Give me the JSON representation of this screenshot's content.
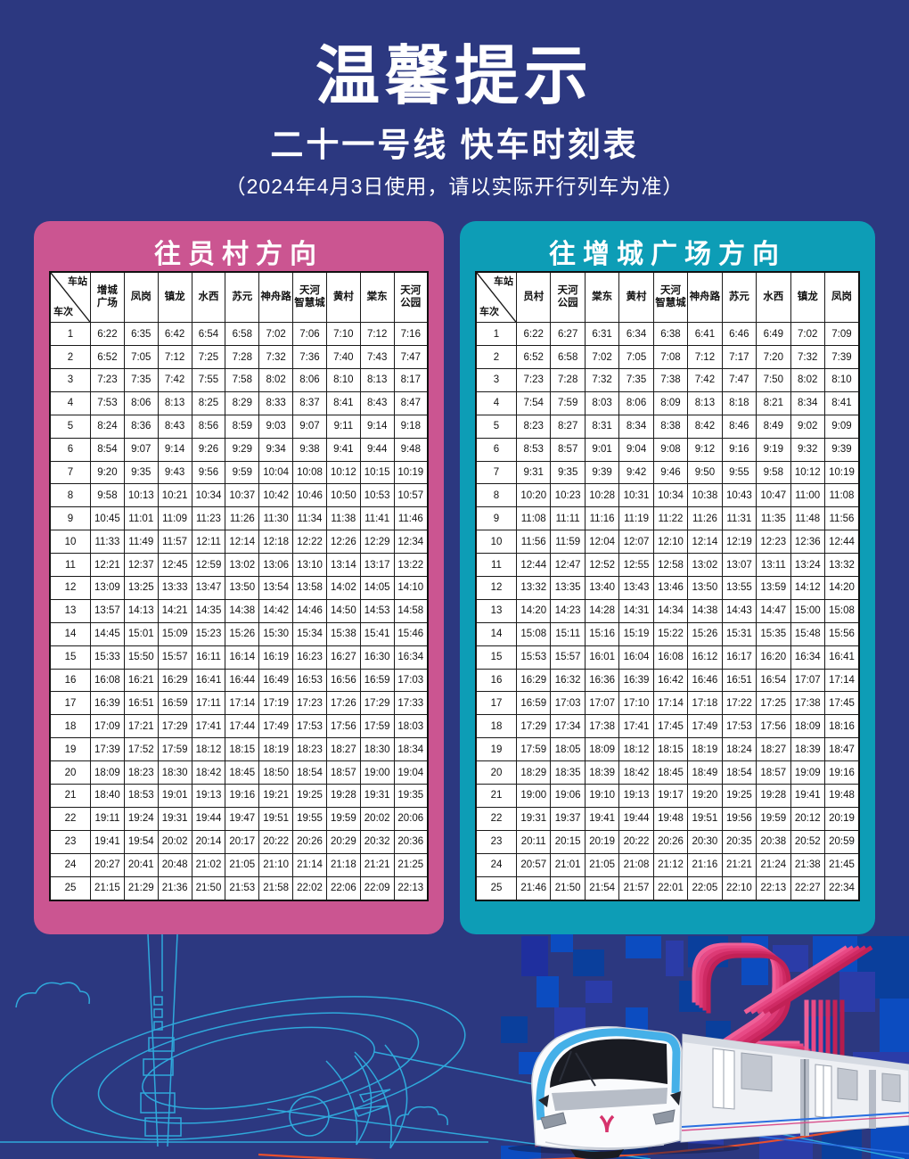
{
  "header": {
    "title": "温馨提示",
    "subtitle": "二十一号线 快车时刻表",
    "note": "（2024年4月3日使用，请以实际开行列车为准）"
  },
  "corner": {
    "station": "车站",
    "train": "车次"
  },
  "colors": {
    "background": "#2c3880",
    "panel_pink": "#cb5591",
    "panel_teal": "#0d9db6",
    "table_border": "#1a1a1a",
    "accent_pink": "#e0447f",
    "line_art_blue": "#2fa9db",
    "orange_route_line": "#e8502e"
  },
  "decoration": {
    "numeral_graphic": "21",
    "icons": [
      "metro-train-icon",
      "canton-tower-line-art-icon",
      "cloud-line-art-icon",
      "pixel-mosaic",
      "crescent-line-art-icon"
    ]
  },
  "tables": [
    {
      "direction": "往员村方向",
      "stations": [
        "增城\n广场",
        "凤岗",
        "镇龙",
        "水西",
        "苏元",
        "神舟路",
        "天河\n智慧城",
        "黄村",
        "棠东",
        "天河\n公园"
      ],
      "rows": [
        {
          "no": "1",
          "times": [
            "6:22",
            "6:35",
            "6:42",
            "6:54",
            "6:58",
            "7:02",
            "7:06",
            "7:10",
            "7:12",
            "7:16"
          ]
        },
        {
          "no": "2",
          "times": [
            "6:52",
            "7:05",
            "7:12",
            "7:25",
            "7:28",
            "7:32",
            "7:36",
            "7:40",
            "7:43",
            "7:47"
          ]
        },
        {
          "no": "3",
          "times": [
            "7:23",
            "7:35",
            "7:42",
            "7:55",
            "7:58",
            "8:02",
            "8:06",
            "8:10",
            "8:13",
            "8:17"
          ]
        },
        {
          "no": "4",
          "times": [
            "7:53",
            "8:06",
            "8:13",
            "8:25",
            "8:29",
            "8:33",
            "8:37",
            "8:41",
            "8:43",
            "8:47"
          ]
        },
        {
          "no": "5",
          "times": [
            "8:24",
            "8:36",
            "8:43",
            "8:56",
            "8:59",
            "9:03",
            "9:07",
            "9:11",
            "9:14",
            "9:18"
          ]
        },
        {
          "no": "6",
          "times": [
            "8:54",
            "9:07",
            "9:14",
            "9:26",
            "9:29",
            "9:34",
            "9:38",
            "9:41",
            "9:44",
            "9:48"
          ]
        },
        {
          "no": "7",
          "times": [
            "9:20",
            "9:35",
            "9:43",
            "9:56",
            "9:59",
            "10:04",
            "10:08",
            "10:12",
            "10:15",
            "10:19"
          ]
        },
        {
          "no": "8",
          "times": [
            "9:58",
            "10:13",
            "10:21",
            "10:34",
            "10:37",
            "10:42",
            "10:46",
            "10:50",
            "10:53",
            "10:57"
          ]
        },
        {
          "no": "9",
          "times": [
            "10:45",
            "11:01",
            "11:09",
            "11:23",
            "11:26",
            "11:30",
            "11:34",
            "11:38",
            "11:41",
            "11:46"
          ]
        },
        {
          "no": "10",
          "times": [
            "11:33",
            "11:49",
            "11:57",
            "12:11",
            "12:14",
            "12:18",
            "12:22",
            "12:26",
            "12:29",
            "12:34"
          ]
        },
        {
          "no": "11",
          "times": [
            "12:21",
            "12:37",
            "12:45",
            "12:59",
            "13:02",
            "13:06",
            "13:10",
            "13:14",
            "13:17",
            "13:22"
          ]
        },
        {
          "no": "12",
          "times": [
            "13:09",
            "13:25",
            "13:33",
            "13:47",
            "13:50",
            "13:54",
            "13:58",
            "14:02",
            "14:05",
            "14:10"
          ]
        },
        {
          "no": "13",
          "times": [
            "13:57",
            "14:13",
            "14:21",
            "14:35",
            "14:38",
            "14:42",
            "14:46",
            "14:50",
            "14:53",
            "14:58"
          ]
        },
        {
          "no": "14",
          "times": [
            "14:45",
            "15:01",
            "15:09",
            "15:23",
            "15:26",
            "15:30",
            "15:34",
            "15:38",
            "15:41",
            "15:46"
          ]
        },
        {
          "no": "15",
          "times": [
            "15:33",
            "15:50",
            "15:57",
            "16:11",
            "16:14",
            "16:19",
            "16:23",
            "16:27",
            "16:30",
            "16:34"
          ]
        },
        {
          "no": "16",
          "times": [
            "16:08",
            "16:21",
            "16:29",
            "16:41",
            "16:44",
            "16:49",
            "16:53",
            "16:56",
            "16:59",
            "17:03"
          ]
        },
        {
          "no": "17",
          "times": [
            "16:39",
            "16:51",
            "16:59",
            "17:11",
            "17:14",
            "17:19",
            "17:23",
            "17:26",
            "17:29",
            "17:33"
          ]
        },
        {
          "no": "18",
          "times": [
            "17:09",
            "17:21",
            "17:29",
            "17:41",
            "17:44",
            "17:49",
            "17:53",
            "17:56",
            "17:59",
            "18:03"
          ]
        },
        {
          "no": "19",
          "times": [
            "17:39",
            "17:52",
            "17:59",
            "18:12",
            "18:15",
            "18:19",
            "18:23",
            "18:27",
            "18:30",
            "18:34"
          ]
        },
        {
          "no": "20",
          "times": [
            "18:09",
            "18:23",
            "18:30",
            "18:42",
            "18:45",
            "18:50",
            "18:54",
            "18:57",
            "19:00",
            "19:04"
          ]
        },
        {
          "no": "21",
          "times": [
            "18:40",
            "18:53",
            "19:01",
            "19:13",
            "19:16",
            "19:21",
            "19:25",
            "19:28",
            "19:31",
            "19:35"
          ]
        },
        {
          "no": "22",
          "times": [
            "19:11",
            "19:24",
            "19:31",
            "19:44",
            "19:47",
            "19:51",
            "19:55",
            "19:59",
            "20:02",
            "20:06"
          ]
        },
        {
          "no": "23",
          "times": [
            "19:41",
            "19:54",
            "20:02",
            "20:14",
            "20:17",
            "20:22",
            "20:26",
            "20:29",
            "20:32",
            "20:36"
          ]
        },
        {
          "no": "24",
          "times": [
            "20:27",
            "20:41",
            "20:48",
            "21:02",
            "21:05",
            "21:10",
            "21:14",
            "21:18",
            "21:21",
            "21:25"
          ]
        },
        {
          "no": "25",
          "times": [
            "21:15",
            "21:29",
            "21:36",
            "21:50",
            "21:53",
            "21:58",
            "22:02",
            "22:06",
            "22:09",
            "22:13"
          ]
        }
      ]
    },
    {
      "direction": "往增城广场方向",
      "stations": [
        "员村",
        "天河\n公园",
        "棠东",
        "黄村",
        "天河\n智慧城",
        "神舟路",
        "苏元",
        "水西",
        "镇龙",
        "凤岗"
      ],
      "rows": [
        {
          "no": "1",
          "times": [
            "6:22",
            "6:27",
            "6:31",
            "6:34",
            "6:38",
            "6:41",
            "6:46",
            "6:49",
            "7:02",
            "7:09"
          ]
        },
        {
          "no": "2",
          "times": [
            "6:52",
            "6:58",
            "7:02",
            "7:05",
            "7:08",
            "7:12",
            "7:17",
            "7:20",
            "7:32",
            "7:39"
          ]
        },
        {
          "no": "3",
          "times": [
            "7:23",
            "7:28",
            "7:32",
            "7:35",
            "7:38",
            "7:42",
            "7:47",
            "7:50",
            "8:02",
            "8:10"
          ]
        },
        {
          "no": "4",
          "times": [
            "7:54",
            "7:59",
            "8:03",
            "8:06",
            "8:09",
            "8:13",
            "8:18",
            "8:21",
            "8:34",
            "8:41"
          ]
        },
        {
          "no": "5",
          "times": [
            "8:23",
            "8:27",
            "8:31",
            "8:34",
            "8:38",
            "8:42",
            "8:46",
            "8:49",
            "9:02",
            "9:09"
          ]
        },
        {
          "no": "6",
          "times": [
            "8:53",
            "8:57",
            "9:01",
            "9:04",
            "9:08",
            "9:12",
            "9:16",
            "9:19",
            "9:32",
            "9:39"
          ]
        },
        {
          "no": "7",
          "times": [
            "9:31",
            "9:35",
            "9:39",
            "9:42",
            "9:46",
            "9:50",
            "9:55",
            "9:58",
            "10:12",
            "10:19"
          ]
        },
        {
          "no": "8",
          "times": [
            "10:20",
            "10:23",
            "10:28",
            "10:31",
            "10:34",
            "10:38",
            "10:43",
            "10:47",
            "11:00",
            "11:08"
          ]
        },
        {
          "no": "9",
          "times": [
            "11:08",
            "11:11",
            "11:16",
            "11:19",
            "11:22",
            "11:26",
            "11:31",
            "11:35",
            "11:48",
            "11:56"
          ]
        },
        {
          "no": "10",
          "times": [
            "11:56",
            "11:59",
            "12:04",
            "12:07",
            "12:10",
            "12:14",
            "12:19",
            "12:23",
            "12:36",
            "12:44"
          ]
        },
        {
          "no": "11",
          "times": [
            "12:44",
            "12:47",
            "12:52",
            "12:55",
            "12:58",
            "13:02",
            "13:07",
            "13:11",
            "13:24",
            "13:32"
          ]
        },
        {
          "no": "12",
          "times": [
            "13:32",
            "13:35",
            "13:40",
            "13:43",
            "13:46",
            "13:50",
            "13:55",
            "13:59",
            "14:12",
            "14:20"
          ]
        },
        {
          "no": "13",
          "times": [
            "14:20",
            "14:23",
            "14:28",
            "14:31",
            "14:34",
            "14:38",
            "14:43",
            "14:47",
            "15:00",
            "15:08"
          ]
        },
        {
          "no": "14",
          "times": [
            "15:08",
            "15:11",
            "15:16",
            "15:19",
            "15:22",
            "15:26",
            "15:31",
            "15:35",
            "15:48",
            "15:56"
          ]
        },
        {
          "no": "15",
          "times": [
            "15:53",
            "15:57",
            "16:01",
            "16:04",
            "16:08",
            "16:12",
            "16:17",
            "16:20",
            "16:34",
            "16:41"
          ]
        },
        {
          "no": "16",
          "times": [
            "16:29",
            "16:32",
            "16:36",
            "16:39",
            "16:42",
            "16:46",
            "16:51",
            "16:54",
            "17:07",
            "17:14"
          ]
        },
        {
          "no": "17",
          "times": [
            "16:59",
            "17:03",
            "17:07",
            "17:10",
            "17:14",
            "17:18",
            "17:22",
            "17:25",
            "17:38",
            "17:45"
          ]
        },
        {
          "no": "18",
          "times": [
            "17:29",
            "17:34",
            "17:38",
            "17:41",
            "17:45",
            "17:49",
            "17:53",
            "17:56",
            "18:09",
            "18:16"
          ]
        },
        {
          "no": "19",
          "times": [
            "17:59",
            "18:05",
            "18:09",
            "18:12",
            "18:15",
            "18:19",
            "18:24",
            "18:27",
            "18:39",
            "18:47"
          ]
        },
        {
          "no": "20",
          "times": [
            "18:29",
            "18:35",
            "18:39",
            "18:42",
            "18:45",
            "18:49",
            "18:54",
            "18:57",
            "19:09",
            "19:16"
          ]
        },
        {
          "no": "21",
          "times": [
            "19:00",
            "19:06",
            "19:10",
            "19:13",
            "19:17",
            "19:20",
            "19:25",
            "19:28",
            "19:41",
            "19:48"
          ]
        },
        {
          "no": "22",
          "times": [
            "19:31",
            "19:37",
            "19:41",
            "19:44",
            "19:48",
            "19:51",
            "19:56",
            "19:59",
            "20:12",
            "20:19"
          ]
        },
        {
          "no": "23",
          "times": [
            "20:11",
            "20:15",
            "20:19",
            "20:22",
            "20:26",
            "20:30",
            "20:35",
            "20:38",
            "20:52",
            "20:59"
          ]
        },
        {
          "no": "24",
          "times": [
            "20:57",
            "21:01",
            "21:05",
            "21:08",
            "21:12",
            "21:16",
            "21:21",
            "21:24",
            "21:38",
            "21:45"
          ]
        },
        {
          "no": "25",
          "times": [
            "21:46",
            "21:50",
            "21:54",
            "21:57",
            "22:01",
            "22:05",
            "22:10",
            "22:13",
            "22:27",
            "22:34"
          ]
        }
      ]
    }
  ]
}
